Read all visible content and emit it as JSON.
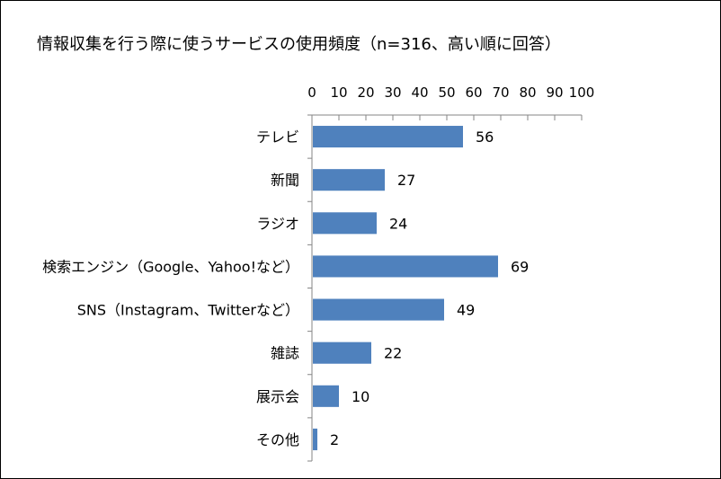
{
  "chart_data": {
    "type": "bar",
    "orientation": "horizontal",
    "title": "情報収集を行う際に使うサービスの使用頻度（n=316、高い順に回答）",
    "categories": [
      "テレビ",
      "新聞",
      "ラジオ",
      "検索エンジン（Google、Yahoo!など）",
      "SNS（Instagram、Twitterなど）",
      "雑誌",
      "展示会",
      "その他"
    ],
    "values": [
      56,
      27,
      24,
      69,
      49,
      22,
      10,
      2
    ],
    "xlim": [
      0,
      100
    ],
    "x_ticks": [
      "0",
      "10",
      "20",
      "30",
      "40",
      "50",
      "60",
      "70",
      "80",
      "90",
      "100"
    ],
    "axis_position": "top",
    "bar_color": "#4F81BD",
    "grid": false,
    "legend": "none"
  }
}
